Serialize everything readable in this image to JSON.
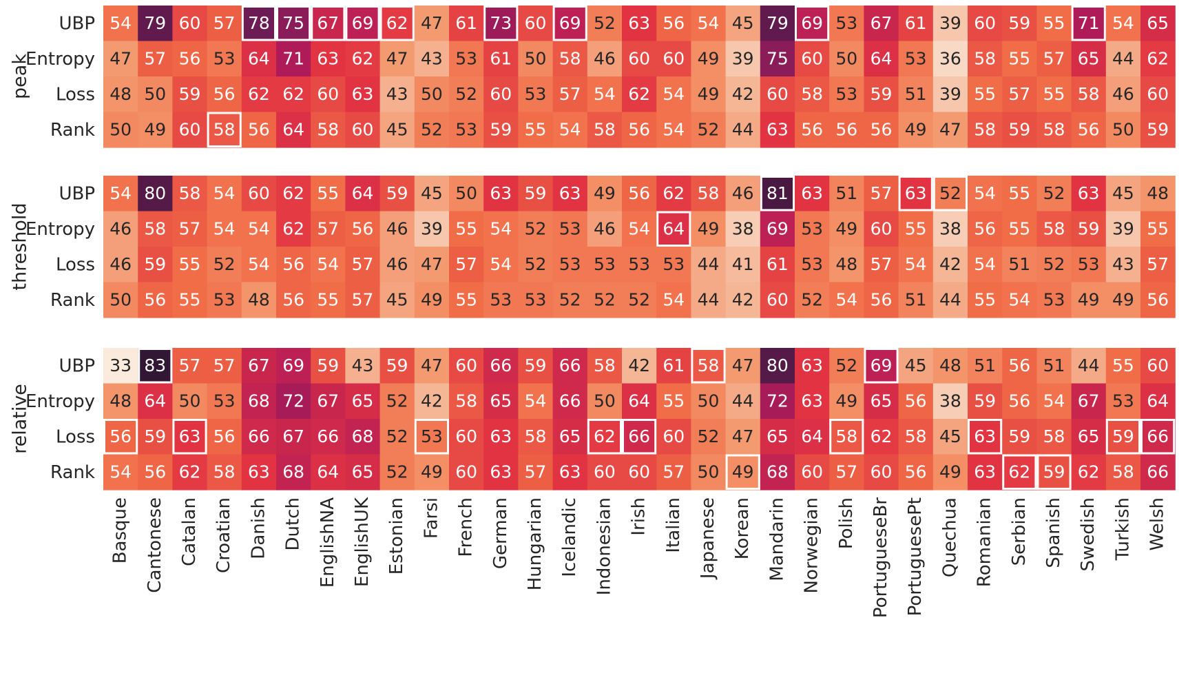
{
  "chart_data": {
    "type": "heatmap",
    "title": "",
    "xlabel": "",
    "ylabel": "",
    "colormap": "rocket_r",
    "vmin": 33,
    "vmax": 83,
    "categories": [
      "Basque",
      "Cantonese",
      "Catalan",
      "Croatian",
      "Danish",
      "Dutch",
      "EnglishNA",
      "EnglishUK",
      "Estonian",
      "Farsi",
      "French",
      "German",
      "Hungarian",
      "Icelandic",
      "Indonesian",
      "Irish",
      "Italian",
      "Japanese",
      "Korean",
      "Mandarin",
      "Norwegian",
      "Polish",
      "PortugueseBr",
      "PortuguesePt",
      "Quechua",
      "Romanian",
      "Serbian",
      "Spanish",
      "Swedish",
      "Turkish",
      "Welsh"
    ],
    "row_labels": [
      "UBP",
      "Entropy",
      "Loss",
      "Rank"
    ],
    "panels": [
      {
        "name": "peak",
        "values": [
          [
            54,
            79,
            60,
            57,
            78,
            75,
            67,
            69,
            62,
            47,
            61,
            73,
            60,
            69,
            52,
            63,
            56,
            54,
            45,
            79,
            69,
            53,
            67,
            61,
            39,
            60,
            59,
            55,
            71,
            54,
            65
          ],
          [
            47,
            57,
            56,
            53,
            64,
            71,
            63,
            62,
            47,
            43,
            53,
            61,
            50,
            58,
            46,
            60,
            60,
            49,
            39,
            75,
            60,
            50,
            64,
            53,
            36,
            58,
            55,
            57,
            65,
            44,
            62
          ],
          [
            48,
            50,
            59,
            56,
            62,
            62,
            60,
            63,
            43,
            50,
            52,
            60,
            53,
            57,
            54,
            62,
            54,
            49,
            42,
            60,
            58,
            53,
            59,
            51,
            39,
            55,
            57,
            55,
            58,
            46,
            60
          ],
          [
            50,
            49,
            60,
            58,
            56,
            64,
            58,
            60,
            45,
            52,
            53,
            59,
            55,
            54,
            58,
            56,
            54,
            52,
            44,
            63,
            56,
            56,
            56,
            49,
            47,
            58,
            59,
            58,
            56,
            50,
            59
          ]
        ],
        "highlighted": [
          [
            0,
            4
          ],
          [
            0,
            5
          ],
          [
            0,
            6
          ],
          [
            0,
            7
          ],
          [
            0,
            8
          ],
          [
            0,
            11
          ],
          [
            0,
            13
          ],
          [
            0,
            20
          ],
          [
            0,
            28
          ],
          [
            3,
            3
          ]
        ]
      },
      {
        "name": "threshold",
        "values": [
          [
            54,
            80,
            58,
            54,
            60,
            62,
            55,
            64,
            59,
            45,
            50,
            63,
            59,
            63,
            49,
            56,
            62,
            58,
            46,
            81,
            63,
            51,
            57,
            63,
            52,
            54,
            55,
            52,
            63,
            45,
            48
          ],
          [
            46,
            58,
            57,
            54,
            54,
            62,
            57,
            56,
            46,
            39,
            55,
            54,
            52,
            53,
            46,
            54,
            64,
            49,
            38,
            69,
            53,
            49,
            60,
            55,
            38,
            56,
            55,
            58,
            59,
            39,
            55
          ],
          [
            46,
            59,
            55,
            52,
            54,
            56,
            54,
            57,
            46,
            47,
            57,
            54,
            52,
            53,
            53,
            53,
            53,
            44,
            41,
            61,
            53,
            48,
            57,
            54,
            42,
            54,
            51,
            52,
            53,
            43,
            57
          ],
          [
            50,
            56,
            55,
            53,
            48,
            56,
            55,
            57,
            45,
            49,
            55,
            53,
            53,
            52,
            52,
            52,
            54,
            44,
            42,
            60,
            52,
            54,
            56,
            51,
            44,
            55,
            54,
            53,
            49,
            49,
            56
          ]
        ],
        "highlighted": [
          [
            0,
            19
          ],
          [
            0,
            23
          ],
          [
            0,
            24
          ],
          [
            1,
            16
          ]
        ]
      },
      {
        "name": "relative",
        "values": [
          [
            33,
            83,
            57,
            57,
            67,
            69,
            59,
            43,
            59,
            47,
            60,
            66,
            59,
            66,
            58,
            42,
            61,
            58,
            47,
            80,
            63,
            52,
            69,
            45,
            48,
            51,
            56,
            51,
            44,
            55,
            60
          ],
          [
            48,
            64,
            50,
            53,
            68,
            72,
            67,
            65,
            52,
            42,
            58,
            65,
            54,
            66,
            50,
            64,
            55,
            50,
            44,
            72,
            63,
            49,
            65,
            56,
            38,
            59,
            56,
            54,
            67,
            53,
            64
          ],
          [
            56,
            59,
            63,
            56,
            66,
            67,
            66,
            68,
            52,
            53,
            60,
            63,
            58,
            65,
            62,
            66,
            60,
            52,
            47,
            65,
            64,
            58,
            62,
            58,
            45,
            63,
            59,
            58,
            65,
            59,
            66
          ],
          [
            54,
            56,
            62,
            58,
            63,
            68,
            64,
            65,
            52,
            49,
            60,
            63,
            57,
            63,
            60,
            60,
            57,
            50,
            49,
            68,
            60,
            57,
            60,
            56,
            49,
            63,
            62,
            59,
            62,
            58,
            66
          ]
        ],
        "highlighted": [
          [
            0,
            1
          ],
          [
            0,
            17
          ],
          [
            0,
            22
          ],
          [
            2,
            0
          ],
          [
            2,
            2
          ],
          [
            2,
            9
          ],
          [
            2,
            14
          ],
          [
            2,
            15
          ],
          [
            2,
            21
          ],
          [
            2,
            25
          ],
          [
            2,
            29
          ],
          [
            2,
            30
          ],
          [
            3,
            18
          ],
          [
            3,
            26
          ],
          [
            3,
            27
          ]
        ]
      }
    ]
  }
}
